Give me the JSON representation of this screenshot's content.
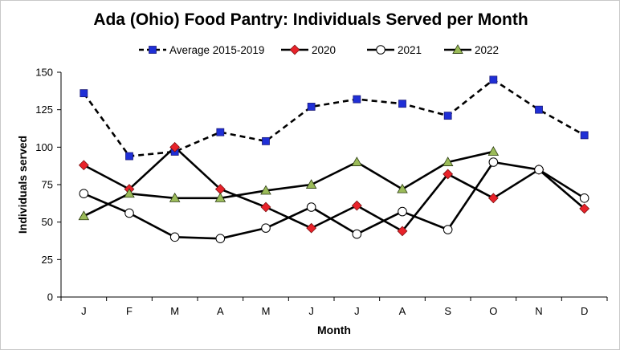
{
  "chart_data": {
    "type": "line",
    "title": "Ada (Ohio) Food Pantry: Individuals Served per Month",
    "xlabel": "Month",
    "ylabel": "Individuals served",
    "categories": [
      "J",
      "F",
      "M",
      "A",
      "M",
      "J",
      "J",
      "A",
      "S",
      "O",
      "N",
      "D"
    ],
    "yticks": [
      0,
      25,
      50,
      75,
      100,
      125,
      150
    ],
    "ylim": [
      0,
      150
    ],
    "grid": false,
    "legend_position": "top",
    "series": [
      {
        "name": "Average 2015-2019",
        "color": "#1f2fd6",
        "marker": "square",
        "dashed": true,
        "values": [
          136,
          94,
          97,
          110,
          104,
          127,
          132,
          129,
          121,
          145,
          125,
          108
        ]
      },
      {
        "name": "2020",
        "color": "#e8222a",
        "marker": "diamond",
        "dashed": false,
        "values": [
          88,
          72,
          100,
          72,
          60,
          46,
          61,
          44,
          82,
          66,
          85,
          59
        ]
      },
      {
        "name": "2021",
        "color": "#ffffff",
        "marker": "circle",
        "dashed": false,
        "values": [
          69,
          56,
          40,
          39,
          46,
          60,
          42,
          57,
          45,
          90,
          85,
          66
        ]
      },
      {
        "name": "2022",
        "color": "#9bbb59",
        "marker": "triangle",
        "dashed": false,
        "values": [
          54,
          69,
          66,
          66,
          71,
          75,
          90,
          72,
          90,
          97,
          null,
          null
        ]
      }
    ]
  }
}
